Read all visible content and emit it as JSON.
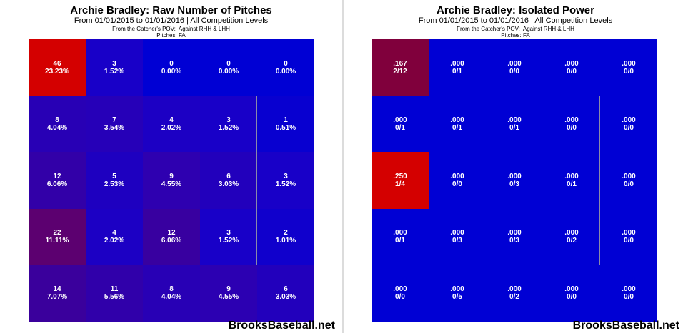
{
  "chart_data": [
    {
      "type": "heatmap",
      "title": "Archie Bradley: Raw Number of Pitches",
      "subtitle": "From 01/01/2015 to 01/01/2016 | All Competition Levels",
      "perspective": "From the Catcher's POV:  Against RHH & LHH",
      "pitches": "Pitches:  FA",
      "watermark": "BrooksBaseball.net",
      "rows": 5,
      "cols": 5,
      "strike_zone": "inner 3x3",
      "cells": [
        [
          {
            "top": "46",
            "bottom": "23.23%",
            "color": "#d40000"
          },
          {
            "top": "3",
            "bottom": "1.52%",
            "color": "#1800c8"
          },
          {
            "top": "0",
            "bottom": "0.00%",
            "color": "#0000d4"
          },
          {
            "top": "0",
            "bottom": "0.00%",
            "color": "#0000d4"
          },
          {
            "top": "0",
            "bottom": "0.00%",
            "color": "#0000d4"
          }
        ],
        [
          {
            "top": "8",
            "bottom": "4.04%",
            "color": "#2800b5"
          },
          {
            "top": "7",
            "bottom": "3.54%",
            "color": "#2600b8"
          },
          {
            "top": "4",
            "bottom": "2.02%",
            "color": "#1c00c4"
          },
          {
            "top": "3",
            "bottom": "1.52%",
            "color": "#1800c8"
          },
          {
            "top": "1",
            "bottom": "0.51%",
            "color": "#0800d0"
          }
        ],
        [
          {
            "top": "12",
            "bottom": "6.06%",
            "color": "#3200a8"
          },
          {
            "top": "5",
            "bottom": "2.53%",
            "color": "#1e00c0"
          },
          {
            "top": "9",
            "bottom": "4.55%",
            "color": "#2e00b0"
          },
          {
            "top": "6",
            "bottom": "3.03%",
            "color": "#2200bc"
          },
          {
            "top": "3",
            "bottom": "1.52%",
            "color": "#1800c8"
          }
        ],
        [
          {
            "top": "22",
            "bottom": "11.11%",
            "color": "#5c0070"
          },
          {
            "top": "4",
            "bottom": "2.02%",
            "color": "#1c00c4"
          },
          {
            "top": "12",
            "bottom": "6.06%",
            "color": "#3800a0"
          },
          {
            "top": "3",
            "bottom": "1.52%",
            "color": "#1800c8"
          },
          {
            "top": "2",
            "bottom": "1.01%",
            "color": "#1000cc"
          }
        ],
        [
          {
            "top": "14",
            "bottom": "7.07%",
            "color": "#3a009c"
          },
          {
            "top": "11",
            "bottom": "5.56%",
            "color": "#3000aa"
          },
          {
            "top": "8",
            "bottom": "4.04%",
            "color": "#2800b5"
          },
          {
            "top": "9",
            "bottom": "4.55%",
            "color": "#2c00b2"
          },
          {
            "top": "6",
            "bottom": "3.03%",
            "color": "#2200bc"
          }
        ]
      ]
    },
    {
      "type": "heatmap",
      "title": "Archie Bradley: Isolated Power",
      "subtitle": "From 01/01/2015 to 01/01/2016 | All Competition Levels",
      "perspective": "From the Catcher's POV:  Against RHH & LHH",
      "pitches": "Pitches:  FA",
      "watermark": "BrooksBaseball.net",
      "rows": 5,
      "cols": 5,
      "strike_zone": "inner 3x3",
      "cells": [
        [
          {
            "top": ".167",
            "bottom": "2/12",
            "color": "#80003c"
          },
          {
            "top": ".000",
            "bottom": "0/1",
            "color": "#0000d4"
          },
          {
            "top": ".000",
            "bottom": "0/0",
            "color": "#0000d4"
          },
          {
            "top": ".000",
            "bottom": "0/0",
            "color": "#0000d4"
          },
          {
            "top": ".000",
            "bottom": "0/0",
            "color": "#0000d4"
          }
        ],
        [
          {
            "top": ".000",
            "bottom": "0/1",
            "color": "#0000d4"
          },
          {
            "top": ".000",
            "bottom": "0/1",
            "color": "#0000d4"
          },
          {
            "top": ".000",
            "bottom": "0/1",
            "color": "#0000d4"
          },
          {
            "top": ".000",
            "bottom": "0/0",
            "color": "#0000d4"
          },
          {
            "top": ".000",
            "bottom": "0/0",
            "color": "#0000d4"
          }
        ],
        [
          {
            "top": ".250",
            "bottom": "1/4",
            "color": "#d40000"
          },
          {
            "top": ".000",
            "bottom": "0/0",
            "color": "#0000d4"
          },
          {
            "top": ".000",
            "bottom": "0/3",
            "color": "#0000d4"
          },
          {
            "top": ".000",
            "bottom": "0/1",
            "color": "#0000d4"
          },
          {
            "top": ".000",
            "bottom": "0/0",
            "color": "#0000d4"
          }
        ],
        [
          {
            "top": ".000",
            "bottom": "0/1",
            "color": "#0000d4"
          },
          {
            "top": ".000",
            "bottom": "0/3",
            "color": "#0000d4"
          },
          {
            "top": ".000",
            "bottom": "0/3",
            "color": "#0000d4"
          },
          {
            "top": ".000",
            "bottom": "0/2",
            "color": "#0000d4"
          },
          {
            "top": ".000",
            "bottom": "0/0",
            "color": "#0000d4"
          }
        ],
        [
          {
            "top": ".000",
            "bottom": "0/0",
            "color": "#0000d4"
          },
          {
            "top": ".000",
            "bottom": "0/5",
            "color": "#0000d4"
          },
          {
            "top": ".000",
            "bottom": "0/2",
            "color": "#0000d4"
          },
          {
            "top": ".000",
            "bottom": "0/0",
            "color": "#0000d4"
          },
          {
            "top": ".000",
            "bottom": "0/0",
            "color": "#0000d4"
          }
        ]
      ]
    }
  ]
}
